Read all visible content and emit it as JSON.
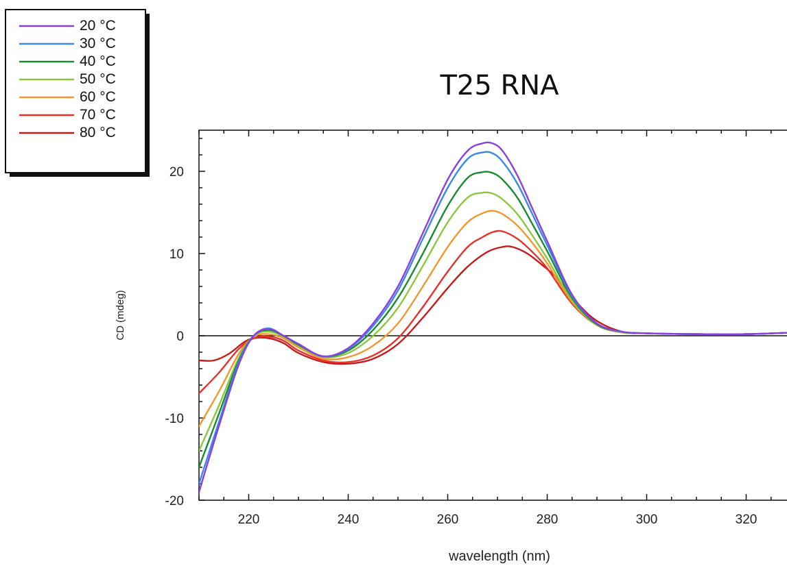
{
  "chart_data": {
    "type": "line",
    "title": "T25 RNA",
    "xlabel": "wavelength (nm)",
    "ylabel": "CD (mdeg)",
    "xlim": [
      210,
      330
    ],
    "ylim": [
      -20,
      25
    ],
    "xticks": [
      220,
      240,
      260,
      280,
      300,
      320
    ],
    "yticks": [
      -20,
      -10,
      0,
      10,
      20
    ],
    "zero_line": true,
    "grid": false,
    "legend_position": "top-left",
    "series": [
      {
        "name": "20 °C",
        "color": "#8a3fe0",
        "x": [
          210,
          214,
          218,
          221,
          224,
          227,
          230,
          235,
          240,
          245,
          250,
          255,
          260,
          264,
          267,
          269,
          271,
          274,
          277,
          280,
          285,
          290,
          295,
          300,
          310,
          320,
          330
        ],
        "y": [
          -19,
          -11,
          -3.5,
          0,
          0.8,
          0,
          -1,
          -2.5,
          -1.5,
          1.5,
          6,
          12.5,
          19,
          22.5,
          23.4,
          23.4,
          22.5,
          19.5,
          15.5,
          11.5,
          5,
          1.5,
          0.5,
          0.3,
          0.2,
          0.2,
          0.4
        ]
      },
      {
        "name": "30 °C",
        "color": "#3a88e8",
        "x": [
          210,
          214,
          218,
          221,
          224,
          227,
          230,
          235,
          240,
          245,
          250,
          255,
          260,
          264,
          267,
          269,
          271,
          274,
          277,
          280,
          285,
          290,
          295,
          300,
          310,
          320,
          330
        ],
        "y": [
          -18,
          -10.5,
          -3.2,
          0,
          0.9,
          0,
          -1,
          -2.5,
          -1.6,
          1.2,
          5.5,
          11.8,
          18,
          21.5,
          22.3,
          22.2,
          21.2,
          18.5,
          14.8,
          11,
          4.8,
          1.5,
          0.5,
          0.3,
          0.2,
          0.2,
          0.4
        ]
      },
      {
        "name": "40 °C",
        "color": "#1a8a2e",
        "x": [
          210,
          214,
          218,
          221,
          224,
          227,
          230,
          235,
          240,
          245,
          250,
          255,
          260,
          264,
          267,
          269,
          271,
          274,
          277,
          280,
          285,
          290,
          295,
          300,
          310,
          320,
          330
        ],
        "y": [
          -16,
          -9.5,
          -3,
          0,
          0.7,
          0,
          -1.1,
          -2.5,
          -1.8,
          0.7,
          4.6,
          10,
          15.8,
          19.2,
          19.9,
          19.8,
          19,
          16.8,
          13.6,
          10.3,
          4.6,
          1.4,
          0.5,
          0.3,
          0.2,
          0.2,
          0.4
        ]
      },
      {
        "name": "50 °C",
        "color": "#8cc63e",
        "x": [
          210,
          214,
          218,
          221,
          224,
          227,
          230,
          235,
          240,
          245,
          250,
          255,
          260,
          264,
          267,
          269,
          271,
          274,
          277,
          280,
          285,
          290,
          295,
          300,
          310,
          320,
          330
        ],
        "y": [
          -14,
          -8.5,
          -2.7,
          0,
          0.5,
          -0.1,
          -1.2,
          -2.6,
          -2.1,
          0,
          3.4,
          8.5,
          13.8,
          16.8,
          17.4,
          17.3,
          16.6,
          14.8,
          12.2,
          9.4,
          4.3,
          1.3,
          0.4,
          0.3,
          0.2,
          0.2,
          0.4
        ]
      },
      {
        "name": "60 °C",
        "color": "#f2962e",
        "x": [
          210,
          214,
          218,
          221,
          224,
          227,
          230,
          235,
          240,
          245,
          250,
          255,
          260,
          264,
          267,
          269,
          271,
          274,
          277,
          280,
          285,
          290,
          295,
          300,
          310,
          320,
          330
        ],
        "y": [
          -11,
          -6.8,
          -2.2,
          -0.1,
          0.2,
          -0.3,
          -1.4,
          -2.8,
          -2.6,
          -1.2,
          1.5,
          6,
          10.8,
          13.8,
          14.9,
          15.2,
          14.8,
          13.4,
          11.3,
          8.8,
          4.1,
          1.3,
          0.4,
          0.3,
          0.2,
          0.2,
          0.4
        ]
      },
      {
        "name": "70 °C",
        "color": "#e8302a",
        "x": [
          210,
          214,
          218,
          221,
          224,
          227,
          230,
          235,
          240,
          245,
          250,
          255,
          260,
          264,
          267,
          269,
          271,
          274,
          277,
          280,
          285,
          290,
          295,
          300,
          310,
          320,
          330
        ],
        "y": [
          -7,
          -4.5,
          -1.6,
          -0.3,
          -0.1,
          -0.6,
          -1.8,
          -3,
          -3.2,
          -2.4,
          -0.3,
          3.5,
          7.8,
          10.8,
          12,
          12.6,
          12.7,
          11.8,
          10.2,
          8.2,
          3.9,
          1.3,
          0.4,
          0.3,
          0.2,
          0.2,
          0.4
        ]
      },
      {
        "name": "80 °C",
        "color": "#c41a1a",
        "x": [
          210,
          213,
          216,
          219,
          221,
          224,
          227,
          230,
          235,
          240,
          245,
          250,
          255,
          260,
          264,
          268,
          271,
          273,
          276,
          279,
          282,
          286,
          290,
          295,
          300,
          310,
          320,
          330
        ],
        "y": [
          -3,
          -3,
          -2.2,
          -0.8,
          -0.3,
          -0.3,
          -0.9,
          -2.1,
          -3.2,
          -3.4,
          -2.8,
          -1,
          2.2,
          5.8,
          8.4,
          10.2,
          10.8,
          10.8,
          10,
          8.6,
          7,
          4,
          1.8,
          0.5,
          0.3,
          0.2,
          0.2,
          0.4
        ]
      }
    ]
  }
}
